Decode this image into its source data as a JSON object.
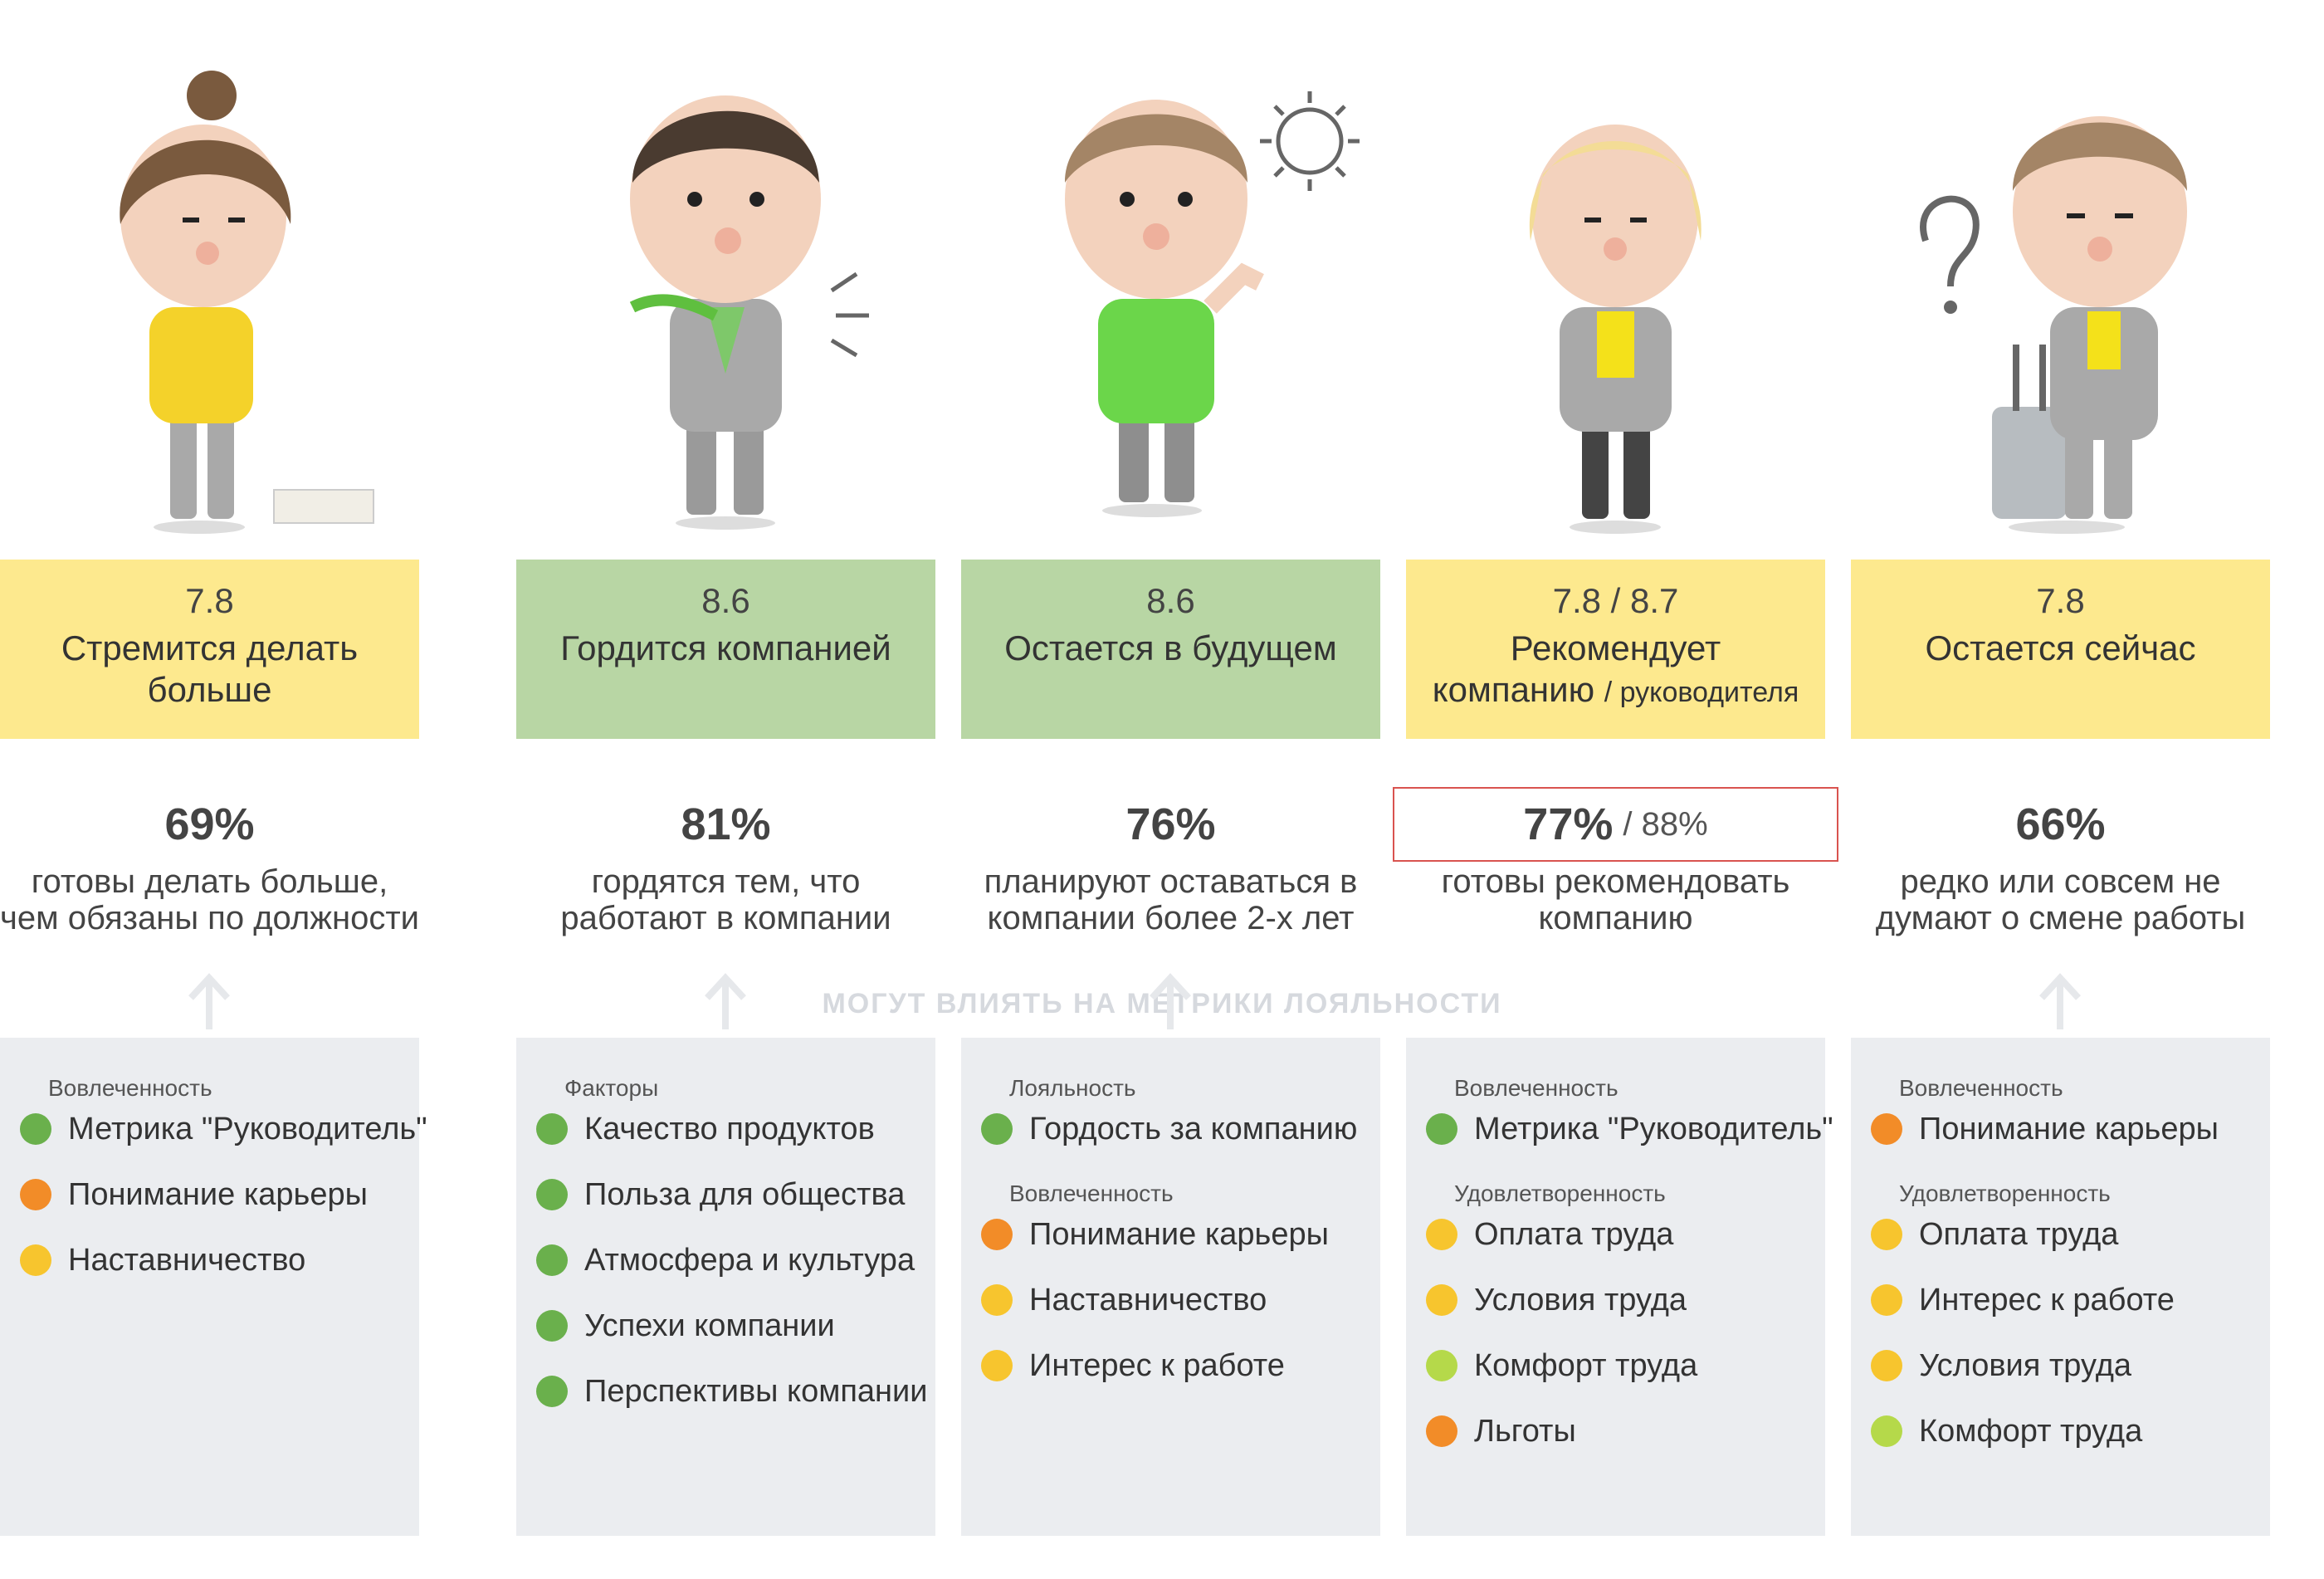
{
  "note": "МОГУТ ВЛИЯТЬ НА МЕТРИКИ ЛОЯЛЬНОСТИ",
  "colors": {
    "green_box": "#b8d6a4",
    "yellow_box": "#fde98e",
    "panel": "#ebedf0",
    "dot_green": "#6ab04c",
    "dot_orange": "#f28c28",
    "dot_yellow": "#f7c52e",
    "dot_lime": "#b5d94a",
    "highlight": "#d9534f"
  },
  "columns": [
    {
      "score": "8.6",
      "name": "Гордится компанией",
      "name_sub": "",
      "box_color": "green",
      "pct": "81%",
      "pct2": "",
      "desc1": "гордятся тем, что",
      "desc2": "работают в компании",
      "groups": [
        {
          "title": "Факторы",
          "items": [
            {
              "label": "Качество продуктов",
              "dot": "green"
            },
            {
              "label": "Польза для общества",
              "dot": "green"
            },
            {
              "label": "Атмосфера и культура",
              "dot": "green"
            },
            {
              "label": "Успехи компании",
              "dot": "green"
            },
            {
              "label": "Перспективы компании",
              "dot": "green"
            }
          ]
        }
      ]
    },
    {
      "score": "8.6",
      "name": "Остается в будущем",
      "name_sub": "",
      "box_color": "green",
      "pct": "76%",
      "pct2": "",
      "desc1": "планируют оставаться в",
      "desc2": "компании более 2-х лет",
      "groups": [
        {
          "title": "Лояльность",
          "items": [
            {
              "label": "Гордость за компанию",
              "dot": "green"
            }
          ]
        },
        {
          "title": "Вовлеченность",
          "items": [
            {
              "label": "Понимание карьеры",
              "dot": "orange"
            },
            {
              "label": "Наставничество",
              "dot": "yellow"
            },
            {
              "label": "Интерес к работе",
              "dot": "yellow"
            }
          ]
        }
      ]
    },
    {
      "score": "7.8 / 8.7",
      "name": "Рекомендует",
      "name2": "компанию",
      "name_sub": "/ руководителя",
      "box_color": "yellow",
      "pct": "77%",
      "pct2": "/ 88%",
      "desc1": "готовы рекомендовать",
      "desc2": "компанию",
      "groups": [
        {
          "title": "Вовлеченность",
          "items": [
            {
              "label": "Метрика \"Руководитель\"",
              "dot": "green"
            }
          ]
        },
        {
          "title": "Удовлетворенность",
          "items": [
            {
              "label": "Оплата труда",
              "dot": "yellow"
            },
            {
              "label": "Условия труда",
              "dot": "yellow"
            },
            {
              "label": "Комфорт труда",
              "dot": "lime"
            },
            {
              "label": "Льготы",
              "dot": "orange"
            }
          ]
        }
      ]
    },
    {
      "score": "7.8",
      "name": "Остается сейчас",
      "name_sub": "",
      "box_color": "yellow",
      "pct": "66%",
      "pct2": "",
      "desc1": "редко или совсем не",
      "desc2": "думают о смене работы",
      "groups": [
        {
          "title": "Вовлеченность",
          "items": [
            {
              "label": "Понимание карьеры",
              "dot": "orange"
            }
          ]
        },
        {
          "title": "Удовлетворенность",
          "items": [
            {
              "label": "Оплата труда",
              "dot": "yellow"
            },
            {
              "label": "Интерес к работе",
              "dot": "yellow"
            },
            {
              "label": "Условия труда",
              "dot": "yellow"
            },
            {
              "label": "Комфорт труда",
              "dot": "lime"
            }
          ]
        }
      ]
    },
    {
      "score": "7.8",
      "name": "Стремится делать",
      "name2": "больше",
      "name_sub": "",
      "box_color": "yellow",
      "pct": "69%",
      "pct2": "",
      "desc1": "готовы делать больше,",
      "desc2": "чем обязаны по должности",
      "groups": [
        {
          "title": "Вовлеченность",
          "items": [
            {
              "label": "Метрика \"Руководитель\"",
              "dot": "green"
            },
            {
              "label": "Понимание карьеры",
              "dot": "orange"
            },
            {
              "label": "Наставничество",
              "dot": "yellow"
            }
          ]
        }
      ]
    }
  ]
}
